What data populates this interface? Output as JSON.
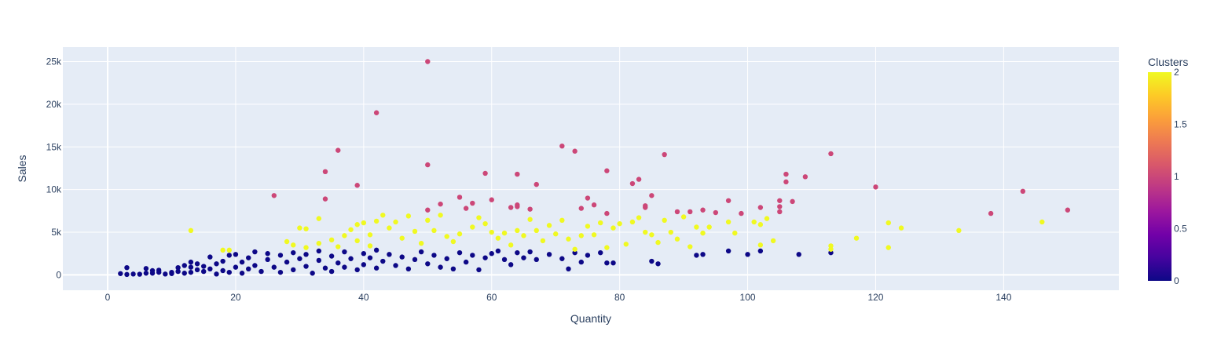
{
  "colors": {
    "plot_bg": "#e5ecf6",
    "grid": "#ffffff",
    "text": "#2a3f5f",
    "colorscale": [
      "#0d0887",
      "#46039f",
      "#7201a8",
      "#9c179e",
      "#bd3786",
      "#d8576b",
      "#ed7953",
      "#fb9f3a",
      "#fdca26",
      "#f0f921"
    ]
  },
  "chart_data": {
    "type": "scatter",
    "title": "",
    "xlabel": "Quantity",
    "ylabel": "Sales",
    "xlim": [
      -7,
      158
    ],
    "ylim": [
      -1800,
      26700
    ],
    "grid": true,
    "x_ticks": [
      0,
      20,
      40,
      60,
      80,
      100,
      120,
      140
    ],
    "x_tick_labels": [
      "0",
      "20",
      "40",
      "60",
      "80",
      "100",
      "120",
      "140"
    ],
    "y_ticks": [
      0,
      5000,
      10000,
      15000,
      20000,
      25000
    ],
    "y_tick_labels": [
      "0",
      "5k",
      "10k",
      "15k",
      "20k",
      "25k"
    ],
    "colorbar": {
      "title": "Clusters",
      "range": [
        0,
        2
      ],
      "ticks": [
        0,
        0.5,
        1,
        1.5,
        2
      ],
      "tick_labels": [
        "0",
        "0.5",
        "1",
        "1.5",
        "2"
      ],
      "position": "right"
    },
    "points": [
      {
        "x": 2,
        "y": 150,
        "cluster": 0
      },
      {
        "x": 3,
        "y": 850,
        "cluster": 0
      },
      {
        "x": 3,
        "y": 50,
        "cluster": 0
      },
      {
        "x": 4,
        "y": 100,
        "cluster": 0
      },
      {
        "x": 5,
        "y": 80,
        "cluster": 0
      },
      {
        "x": 6,
        "y": 750,
        "cluster": 0
      },
      {
        "x": 6,
        "y": 200,
        "cluster": 0
      },
      {
        "x": 7,
        "y": 500,
        "cluster": 0
      },
      {
        "x": 7,
        "y": 200,
        "cluster": 0
      },
      {
        "x": 8,
        "y": 550,
        "cluster": 0
      },
      {
        "x": 8,
        "y": 300,
        "cluster": 0
      },
      {
        "x": 9,
        "y": 100,
        "cluster": 0
      },
      {
        "x": 10,
        "y": 150,
        "cluster": 0
      },
      {
        "x": 10,
        "y": 300,
        "cluster": 0
      },
      {
        "x": 11,
        "y": 400,
        "cluster": 0
      },
      {
        "x": 11,
        "y": 850,
        "cluster": 0
      },
      {
        "x": 12,
        "y": 200,
        "cluster": 0
      },
      {
        "x": 12,
        "y": 1100,
        "cluster": 0
      },
      {
        "x": 13,
        "y": 1500,
        "cluster": 0
      },
      {
        "x": 13,
        "y": 900,
        "cluster": 0
      },
      {
        "x": 13,
        "y": 300,
        "cluster": 0
      },
      {
        "x": 14,
        "y": 600,
        "cluster": 0
      },
      {
        "x": 14,
        "y": 1300,
        "cluster": 0
      },
      {
        "x": 15,
        "y": 400,
        "cluster": 0
      },
      {
        "x": 15,
        "y": 1000,
        "cluster": 0
      },
      {
        "x": 16,
        "y": 2100,
        "cluster": 0
      },
      {
        "x": 16,
        "y": 700,
        "cluster": 0
      },
      {
        "x": 17,
        "y": 100,
        "cluster": 0
      },
      {
        "x": 17,
        "y": 1300,
        "cluster": 0
      },
      {
        "x": 18,
        "y": 500,
        "cluster": 0
      },
      {
        "x": 18,
        "y": 1600,
        "cluster": 0
      },
      {
        "x": 19,
        "y": 2300,
        "cluster": 0
      },
      {
        "x": 19,
        "y": 300,
        "cluster": 0
      },
      {
        "x": 20,
        "y": 900,
        "cluster": 0
      },
      {
        "x": 20,
        "y": 2400,
        "cluster": 0
      },
      {
        "x": 21,
        "y": 1500,
        "cluster": 0
      },
      {
        "x": 21,
        "y": 200,
        "cluster": 0
      },
      {
        "x": 22,
        "y": 2000,
        "cluster": 0
      },
      {
        "x": 22,
        "y": 700,
        "cluster": 0
      },
      {
        "x": 23,
        "y": 2700,
        "cluster": 0
      },
      {
        "x": 23,
        "y": 1100,
        "cluster": 0
      },
      {
        "x": 24,
        "y": 400,
        "cluster": 0
      },
      {
        "x": 25,
        "y": 1800,
        "cluster": 0
      },
      {
        "x": 25,
        "y": 2500,
        "cluster": 0
      },
      {
        "x": 26,
        "y": 900,
        "cluster": 0
      },
      {
        "x": 27,
        "y": 2300,
        "cluster": 0
      },
      {
        "x": 27,
        "y": 300,
        "cluster": 0
      },
      {
        "x": 28,
        "y": 1500,
        "cluster": 0
      },
      {
        "x": 29,
        "y": 2600,
        "cluster": 0
      },
      {
        "x": 29,
        "y": 600,
        "cluster": 0
      },
      {
        "x": 30,
        "y": 1900,
        "cluster": 0
      },
      {
        "x": 31,
        "y": 1000,
        "cluster": 0
      },
      {
        "x": 31,
        "y": 2400,
        "cluster": 0
      },
      {
        "x": 32,
        "y": 200,
        "cluster": 0
      },
      {
        "x": 33,
        "y": 1700,
        "cluster": 0
      },
      {
        "x": 33,
        "y": 2800,
        "cluster": 0
      },
      {
        "x": 34,
        "y": 800,
        "cluster": 0
      },
      {
        "x": 35,
        "y": 2200,
        "cluster": 0
      },
      {
        "x": 35,
        "y": 400,
        "cluster": 0
      },
      {
        "x": 36,
        "y": 1400,
        "cluster": 0
      },
      {
        "x": 37,
        "y": 2700,
        "cluster": 0
      },
      {
        "x": 37,
        "y": 900,
        "cluster": 0
      },
      {
        "x": 38,
        "y": 1900,
        "cluster": 0
      },
      {
        "x": 39,
        "y": 600,
        "cluster": 0
      },
      {
        "x": 40,
        "y": 2500,
        "cluster": 0
      },
      {
        "x": 40,
        "y": 1200,
        "cluster": 0
      },
      {
        "x": 41,
        "y": 2000,
        "cluster": 0
      },
      {
        "x": 42,
        "y": 2900,
        "cluster": 0
      },
      {
        "x": 42,
        "y": 800,
        "cluster": 0
      },
      {
        "x": 43,
        "y": 1600,
        "cluster": 0
      },
      {
        "x": 44,
        "y": 2400,
        "cluster": 0
      },
      {
        "x": 45,
        "y": 1100,
        "cluster": 0
      },
      {
        "x": 46,
        "y": 2100,
        "cluster": 0
      },
      {
        "x": 47,
        "y": 700,
        "cluster": 0
      },
      {
        "x": 48,
        "y": 1800,
        "cluster": 0
      },
      {
        "x": 49,
        "y": 2700,
        "cluster": 0
      },
      {
        "x": 50,
        "y": 1300,
        "cluster": 0
      },
      {
        "x": 51,
        "y": 2300,
        "cluster": 0
      },
      {
        "x": 52,
        "y": 900,
        "cluster": 0
      },
      {
        "x": 53,
        "y": 1900,
        "cluster": 0
      },
      {
        "x": 54,
        "y": 700,
        "cluster": 0
      },
      {
        "x": 55,
        "y": 2600,
        "cluster": 0
      },
      {
        "x": 56,
        "y": 1500,
        "cluster": 0
      },
      {
        "x": 57,
        "y": 2300,
        "cluster": 0
      },
      {
        "x": 58,
        "y": 600,
        "cluster": 0
      },
      {
        "x": 59,
        "y": 2000,
        "cluster": 0
      },
      {
        "x": 60,
        "y": 2500,
        "cluster": 0
      },
      {
        "x": 61,
        "y": 2800,
        "cluster": 0
      },
      {
        "x": 62,
        "y": 1800,
        "cluster": 0
      },
      {
        "x": 63,
        "y": 1200,
        "cluster": 0
      },
      {
        "x": 64,
        "y": 2600,
        "cluster": 0
      },
      {
        "x": 65,
        "y": 2000,
        "cluster": 0
      },
      {
        "x": 66,
        "y": 2700,
        "cluster": 0
      },
      {
        "x": 67,
        "y": 1800,
        "cluster": 0
      },
      {
        "x": 69,
        "y": 2400,
        "cluster": 0
      },
      {
        "x": 71,
        "y": 1900,
        "cluster": 0
      },
      {
        "x": 72,
        "y": 700,
        "cluster": 0
      },
      {
        "x": 73,
        "y": 2600,
        "cluster": 0
      },
      {
        "x": 74,
        "y": 1500,
        "cluster": 0
      },
      {
        "x": 75,
        "y": 2300,
        "cluster": 0
      },
      {
        "x": 77,
        "y": 2600,
        "cluster": 0
      },
      {
        "x": 78,
        "y": 1400,
        "cluster": 0
      },
      {
        "x": 79,
        "y": 1400,
        "cluster": 0
      },
      {
        "x": 85,
        "y": 1600,
        "cluster": 0
      },
      {
        "x": 86,
        "y": 1300,
        "cluster": 0
      },
      {
        "x": 92,
        "y": 2300,
        "cluster": 0
      },
      {
        "x": 93,
        "y": 2400,
        "cluster": 0
      },
      {
        "x": 97,
        "y": 2800,
        "cluster": 0
      },
      {
        "x": 100,
        "y": 2400,
        "cluster": 0
      },
      {
        "x": 102,
        "y": 2800,
        "cluster": 0
      },
      {
        "x": 108,
        "y": 2400,
        "cluster": 0
      },
      {
        "x": 113,
        "y": 2600,
        "cluster": 0
      },
      {
        "x": 26,
        "y": 9300,
        "cluster": 1
      },
      {
        "x": 34,
        "y": 12100,
        "cluster": 1
      },
      {
        "x": 34,
        "y": 8900,
        "cluster": 1
      },
      {
        "x": 36,
        "y": 14600,
        "cluster": 1
      },
      {
        "x": 39,
        "y": 10500,
        "cluster": 1
      },
      {
        "x": 42,
        "y": 19000,
        "cluster": 1
      },
      {
        "x": 50,
        "y": 25000,
        "cluster": 1
      },
      {
        "x": 50,
        "y": 12900,
        "cluster": 1
      },
      {
        "x": 50,
        "y": 7600,
        "cluster": 1
      },
      {
        "x": 52,
        "y": 8300,
        "cluster": 1
      },
      {
        "x": 55,
        "y": 9100,
        "cluster": 1
      },
      {
        "x": 56,
        "y": 7800,
        "cluster": 1
      },
      {
        "x": 57,
        "y": 8400,
        "cluster": 1
      },
      {
        "x": 59,
        "y": 11900,
        "cluster": 1
      },
      {
        "x": 60,
        "y": 8800,
        "cluster": 1
      },
      {
        "x": 63,
        "y": 7900,
        "cluster": 1
      },
      {
        "x": 64,
        "y": 11800,
        "cluster": 1
      },
      {
        "x": 64,
        "y": 8200,
        "cluster": 1
      },
      {
        "x": 64,
        "y": 8000,
        "cluster": 1
      },
      {
        "x": 66,
        "y": 7700,
        "cluster": 1
      },
      {
        "x": 67,
        "y": 10600,
        "cluster": 1
      },
      {
        "x": 71,
        "y": 15100,
        "cluster": 1
      },
      {
        "x": 73,
        "y": 14500,
        "cluster": 1
      },
      {
        "x": 74,
        "y": 7800,
        "cluster": 1
      },
      {
        "x": 75,
        "y": 9000,
        "cluster": 1
      },
      {
        "x": 76,
        "y": 8200,
        "cluster": 1
      },
      {
        "x": 78,
        "y": 12200,
        "cluster": 1
      },
      {
        "x": 78,
        "y": 7200,
        "cluster": 1
      },
      {
        "x": 82,
        "y": 10700,
        "cluster": 1
      },
      {
        "x": 83,
        "y": 11200,
        "cluster": 1
      },
      {
        "x": 84,
        "y": 8100,
        "cluster": 1
      },
      {
        "x": 84,
        "y": 7900,
        "cluster": 1
      },
      {
        "x": 85,
        "y": 9300,
        "cluster": 1
      },
      {
        "x": 87,
        "y": 14100,
        "cluster": 1
      },
      {
        "x": 89,
        "y": 7400,
        "cluster": 1
      },
      {
        "x": 91,
        "y": 7400,
        "cluster": 1
      },
      {
        "x": 93,
        "y": 7600,
        "cluster": 1
      },
      {
        "x": 95,
        "y": 7300,
        "cluster": 1
      },
      {
        "x": 97,
        "y": 8700,
        "cluster": 1
      },
      {
        "x": 99,
        "y": 7200,
        "cluster": 1
      },
      {
        "x": 102,
        "y": 7900,
        "cluster": 1
      },
      {
        "x": 105,
        "y": 8700,
        "cluster": 1
      },
      {
        "x": 105,
        "y": 8000,
        "cluster": 1
      },
      {
        "x": 105,
        "y": 7400,
        "cluster": 1
      },
      {
        "x": 106,
        "y": 11800,
        "cluster": 1
      },
      {
        "x": 106,
        "y": 10900,
        "cluster": 1
      },
      {
        "x": 107,
        "y": 8600,
        "cluster": 1
      },
      {
        "x": 109,
        "y": 11500,
        "cluster": 1
      },
      {
        "x": 113,
        "y": 14200,
        "cluster": 1
      },
      {
        "x": 120,
        "y": 10300,
        "cluster": 1
      },
      {
        "x": 138,
        "y": 7200,
        "cluster": 1
      },
      {
        "x": 143,
        "y": 9800,
        "cluster": 1
      },
      {
        "x": 150,
        "y": 7600,
        "cluster": 1
      },
      {
        "x": 13,
        "y": 5200,
        "cluster": 2
      },
      {
        "x": 18,
        "y": 2900,
        "cluster": 2
      },
      {
        "x": 19,
        "y": 2900,
        "cluster": 2
      },
      {
        "x": 28,
        "y": 3900,
        "cluster": 2
      },
      {
        "x": 29,
        "y": 3500,
        "cluster": 2
      },
      {
        "x": 30,
        "y": 5500,
        "cluster": 2
      },
      {
        "x": 31,
        "y": 5400,
        "cluster": 2
      },
      {
        "x": 31,
        "y": 3200,
        "cluster": 2
      },
      {
        "x": 33,
        "y": 6600,
        "cluster": 2
      },
      {
        "x": 33,
        "y": 3700,
        "cluster": 2
      },
      {
        "x": 35,
        "y": 4100,
        "cluster": 2
      },
      {
        "x": 36,
        "y": 3300,
        "cluster": 2
      },
      {
        "x": 37,
        "y": 4600,
        "cluster": 2
      },
      {
        "x": 38,
        "y": 5300,
        "cluster": 2
      },
      {
        "x": 39,
        "y": 5900,
        "cluster": 2
      },
      {
        "x": 39,
        "y": 4000,
        "cluster": 2
      },
      {
        "x": 40,
        "y": 6100,
        "cluster": 2
      },
      {
        "x": 41,
        "y": 4700,
        "cluster": 2
      },
      {
        "x": 41,
        "y": 3400,
        "cluster": 2
      },
      {
        "x": 42,
        "y": 6300,
        "cluster": 2
      },
      {
        "x": 43,
        "y": 7000,
        "cluster": 2
      },
      {
        "x": 44,
        "y": 5500,
        "cluster": 2
      },
      {
        "x": 45,
        "y": 6200,
        "cluster": 2
      },
      {
        "x": 46,
        "y": 4300,
        "cluster": 2
      },
      {
        "x": 47,
        "y": 6900,
        "cluster": 2
      },
      {
        "x": 48,
        "y": 5100,
        "cluster": 2
      },
      {
        "x": 49,
        "y": 3700,
        "cluster": 2
      },
      {
        "x": 50,
        "y": 6400,
        "cluster": 2
      },
      {
        "x": 51,
        "y": 5200,
        "cluster": 2
      },
      {
        "x": 52,
        "y": 7000,
        "cluster": 2
      },
      {
        "x": 53,
        "y": 4500,
        "cluster": 2
      },
      {
        "x": 54,
        "y": 3900,
        "cluster": 2
      },
      {
        "x": 55,
        "y": 4800,
        "cluster": 2
      },
      {
        "x": 57,
        "y": 5600,
        "cluster": 2
      },
      {
        "x": 58,
        "y": 6700,
        "cluster": 2
      },
      {
        "x": 59,
        "y": 6000,
        "cluster": 2
      },
      {
        "x": 60,
        "y": 5000,
        "cluster": 2
      },
      {
        "x": 61,
        "y": 4300,
        "cluster": 2
      },
      {
        "x": 62,
        "y": 4900,
        "cluster": 2
      },
      {
        "x": 63,
        "y": 3500,
        "cluster": 2
      },
      {
        "x": 64,
        "y": 5200,
        "cluster": 2
      },
      {
        "x": 65,
        "y": 4600,
        "cluster": 2
      },
      {
        "x": 66,
        "y": 6500,
        "cluster": 2
      },
      {
        "x": 67,
        "y": 5200,
        "cluster": 2
      },
      {
        "x": 68,
        "y": 4000,
        "cluster": 2
      },
      {
        "x": 69,
        "y": 5800,
        "cluster": 2
      },
      {
        "x": 70,
        "y": 4800,
        "cluster": 2
      },
      {
        "x": 71,
        "y": 6400,
        "cluster": 2
      },
      {
        "x": 72,
        "y": 4200,
        "cluster": 2
      },
      {
        "x": 73,
        "y": 3000,
        "cluster": 2
      },
      {
        "x": 74,
        "y": 4600,
        "cluster": 2
      },
      {
        "x": 75,
        "y": 5700,
        "cluster": 2
      },
      {
        "x": 76,
        "y": 4700,
        "cluster": 2
      },
      {
        "x": 77,
        "y": 6100,
        "cluster": 2
      },
      {
        "x": 78,
        "y": 3200,
        "cluster": 2
      },
      {
        "x": 79,
        "y": 5500,
        "cluster": 2
      },
      {
        "x": 80,
        "y": 6000,
        "cluster": 2
      },
      {
        "x": 81,
        "y": 3600,
        "cluster": 2
      },
      {
        "x": 82,
        "y": 6200,
        "cluster": 2
      },
      {
        "x": 83,
        "y": 6700,
        "cluster": 2
      },
      {
        "x": 84,
        "y": 5000,
        "cluster": 2
      },
      {
        "x": 85,
        "y": 4700,
        "cluster": 2
      },
      {
        "x": 86,
        "y": 3800,
        "cluster": 2
      },
      {
        "x": 87,
        "y": 6400,
        "cluster": 2
      },
      {
        "x": 88,
        "y": 5000,
        "cluster": 2
      },
      {
        "x": 89,
        "y": 4200,
        "cluster": 2
      },
      {
        "x": 90,
        "y": 6800,
        "cluster": 2
      },
      {
        "x": 91,
        "y": 3300,
        "cluster": 2
      },
      {
        "x": 92,
        "y": 5600,
        "cluster": 2
      },
      {
        "x": 93,
        "y": 4900,
        "cluster": 2
      },
      {
        "x": 94,
        "y": 5600,
        "cluster": 2
      },
      {
        "x": 97,
        "y": 6200,
        "cluster": 2
      },
      {
        "x": 98,
        "y": 4900,
        "cluster": 2
      },
      {
        "x": 101,
        "y": 6200,
        "cluster": 2
      },
      {
        "x": 102,
        "y": 5900,
        "cluster": 2
      },
      {
        "x": 102,
        "y": 3500,
        "cluster": 2
      },
      {
        "x": 103,
        "y": 6600,
        "cluster": 2
      },
      {
        "x": 104,
        "y": 4000,
        "cluster": 2
      },
      {
        "x": 113,
        "y": 3400,
        "cluster": 2
      },
      {
        "x": 113,
        "y": 3000,
        "cluster": 2
      },
      {
        "x": 117,
        "y": 4300,
        "cluster": 2
      },
      {
        "x": 122,
        "y": 6100,
        "cluster": 2
      },
      {
        "x": 122,
        "y": 3200,
        "cluster": 2
      },
      {
        "x": 124,
        "y": 5500,
        "cluster": 2
      },
      {
        "x": 133,
        "y": 5200,
        "cluster": 2
      },
      {
        "x": 146,
        "y": 6200,
        "cluster": 2
      }
    ]
  }
}
